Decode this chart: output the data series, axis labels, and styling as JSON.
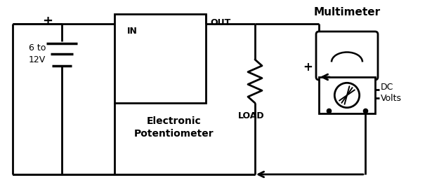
{
  "bg_color": "#ffffff",
  "line_color": "#000000",
  "title": "Multimeter",
  "label_in": "IN",
  "label_out": "OUT",
  "label_ep": "Electronic\nPotentiometer",
  "label_load": "LOAD",
  "label_dc": "DC\nVolts",
  "label_plus_left": "+",
  "label_plus_right": "+",
  "label_battery": "6 to\n12V",
  "lw": 2.0,
  "figsize": [
    6.25,
    2.77
  ],
  "dpi": 100,
  "xlim": [
    0,
    625
  ],
  "ylim": [
    0,
    277
  ]
}
